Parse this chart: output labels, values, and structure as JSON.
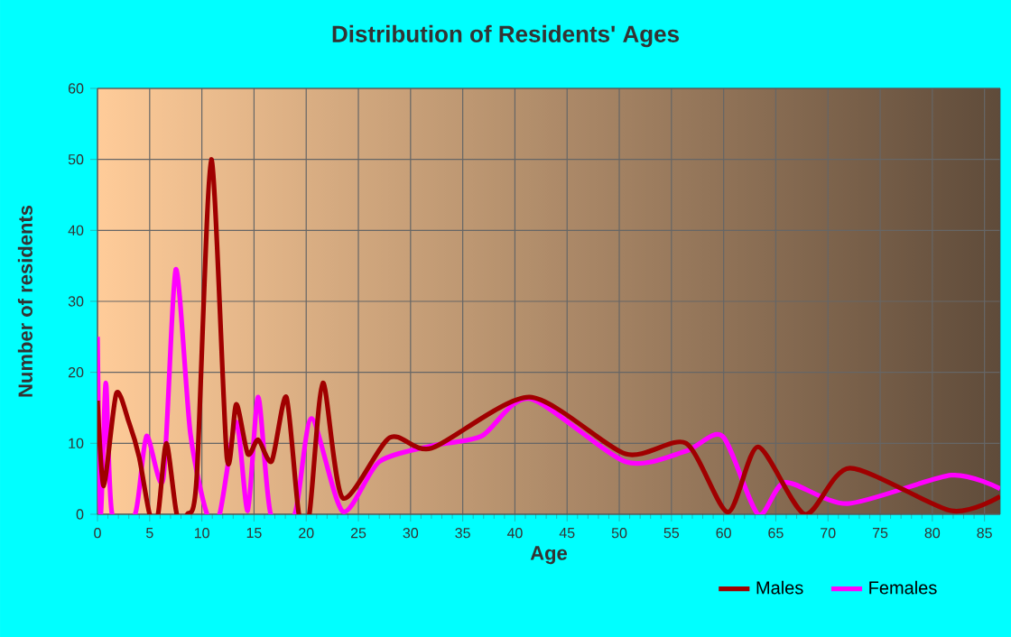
{
  "chart_data": {
    "type": "line",
    "title": "Distribution of Residents' Ages",
    "xlabel": "Age",
    "ylabel": "Number of residents",
    "xlim": [
      0,
      86.5
    ],
    "ylim": [
      0,
      60
    ],
    "xticks": [
      0,
      5,
      10,
      15,
      20,
      25,
      30,
      35,
      40,
      45,
      50,
      55,
      60,
      65,
      70,
      75,
      80,
      85
    ],
    "yticks": [
      0,
      10,
      20,
      30,
      40,
      50,
      60
    ],
    "grid": true,
    "legend": "bottom",
    "marker": "none",
    "line_style": "solid",
    "series": [
      {
        "name": "Males",
        "color": "#a00000",
        "x": [
          0,
          0.6,
          1.8,
          3,
          4,
          5,
          5.8,
          6.6,
          7.6,
          8.6,
          9.5,
          10.9,
          12.4,
          13.3,
          14.4,
          15.4,
          16.7,
          18.1,
          19.3,
          20.3,
          21.6,
          23.5,
          28,
          32,
          41.4,
          50.6,
          56.4,
          60.4,
          63.3,
          67.8,
          72.1,
          81.8,
          86.5
        ],
        "values": [
          16,
          4,
          17,
          13,
          8,
          0,
          0,
          10,
          0,
          0,
          5,
          50,
          8,
          15.5,
          8.5,
          10.5,
          7.5,
          16.5,
          0,
          0,
          18.5,
          2.3,
          10.8,
          9.3,
          16.5,
          8.5,
          10,
          0.3,
          9.5,
          0,
          6.5,
          0.5,
          2.5
        ]
      },
      {
        "name": "Females",
        "color": "#ff00ff",
        "x": [
          0,
          0.3,
          0.8,
          1.4,
          3.6,
          4.7,
          6.3,
          7.5,
          8.9,
          10.5,
          11.7,
          13.3,
          14.4,
          15.4,
          16.6,
          18.9,
          20.5,
          23.5,
          27,
          32.2,
          36.8,
          41.4,
          50.6,
          56.4,
          59.9,
          63.3,
          65.9,
          71.9,
          81.8,
          86.5
        ],
        "values": [
          25,
          0,
          18.5,
          0,
          0,
          11,
          5,
          34.5,
          11.4,
          0,
          0,
          13,
          0.5,
          16.5,
          0,
          0,
          13.5,
          0.4,
          7.4,
          9.7,
          11,
          16.3,
          7.4,
          8.9,
          11,
          0,
          4.5,
          1.5,
          5.5,
          3.6
        ]
      }
    ]
  }
}
